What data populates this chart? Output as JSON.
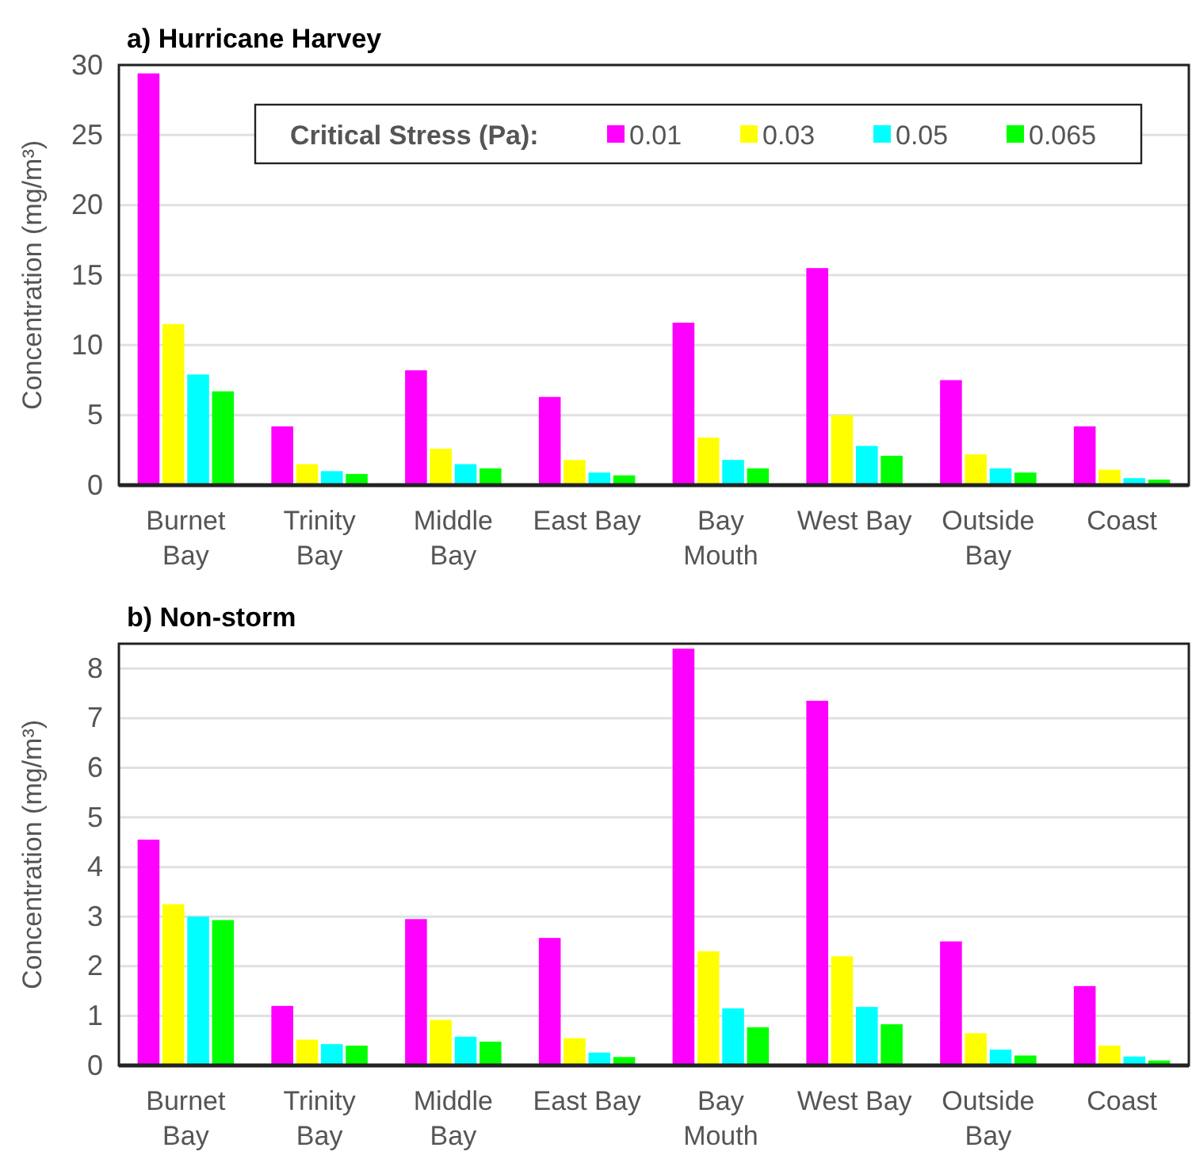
{
  "chart_data": [
    {
      "type": "bar",
      "title": "a) Hurricane Harvey",
      "ylabel": "Concentration (mg/m³)",
      "legend_title": "Critical Stress (Pa):",
      "legend": "top right",
      "grid": "y",
      "categories": [
        "Burnet Bay",
        "Trinity Bay",
        "Middle Bay",
        "East Bay",
        "Bay Mouth",
        "West Bay",
        "Outside Bay",
        "Coast"
      ],
      "ylim": [
        0,
        30
      ],
      "yticks": [
        0,
        5,
        10,
        15,
        20,
        25,
        30
      ],
      "series": [
        {
          "name": "0.01",
          "color": "#ff00ff",
          "values": [
            29.4,
            4.2,
            8.2,
            6.3,
            11.6,
            15.5,
            7.5,
            4.2
          ]
        },
        {
          "name": "0.03",
          "color": "#ffff00",
          "values": [
            11.5,
            1.5,
            2.6,
            1.8,
            3.4,
            5.0,
            2.2,
            1.1
          ]
        },
        {
          "name": "0.05",
          "color": "#00ffff",
          "values": [
            7.9,
            1.0,
            1.5,
            0.9,
            1.8,
            2.8,
            1.2,
            0.5
          ]
        },
        {
          "name": "0.065",
          "color": "#00ff00",
          "values": [
            6.7,
            0.8,
            1.2,
            0.7,
            1.2,
            2.1,
            0.9,
            0.4
          ]
        }
      ]
    },
    {
      "type": "bar",
      "title": "b) Non-storm",
      "ylabel": "Concentration (mg/m³)",
      "grid": "y",
      "categories": [
        "Burnet Bay",
        "Trinity Bay",
        "Middle Bay",
        "East Bay",
        "Bay Mouth",
        "West Bay",
        "Outside Bay",
        "Coast"
      ],
      "ylim": [
        0,
        8.5
      ],
      "yticks": [
        0,
        1,
        2,
        3,
        4,
        5,
        6,
        7,
        8
      ],
      "series": [
        {
          "color": "#ff00ff",
          "values": [
            4.55,
            1.2,
            2.95,
            2.57,
            8.4,
            7.35,
            2.5,
            1.6
          ]
        },
        {
          "color": "#ffff00",
          "values": [
            3.25,
            0.52,
            0.92,
            0.55,
            2.3,
            2.2,
            0.65,
            0.4
          ]
        },
        {
          "color": "#00ffff",
          "values": [
            3.0,
            0.43,
            0.58,
            0.26,
            1.15,
            1.18,
            0.32,
            0.18
          ]
        },
        {
          "color": "#00ff00",
          "values": [
            2.93,
            0.4,
            0.48,
            0.17,
            0.77,
            0.83,
            0.2,
            0.1
          ]
        }
      ]
    }
  ]
}
